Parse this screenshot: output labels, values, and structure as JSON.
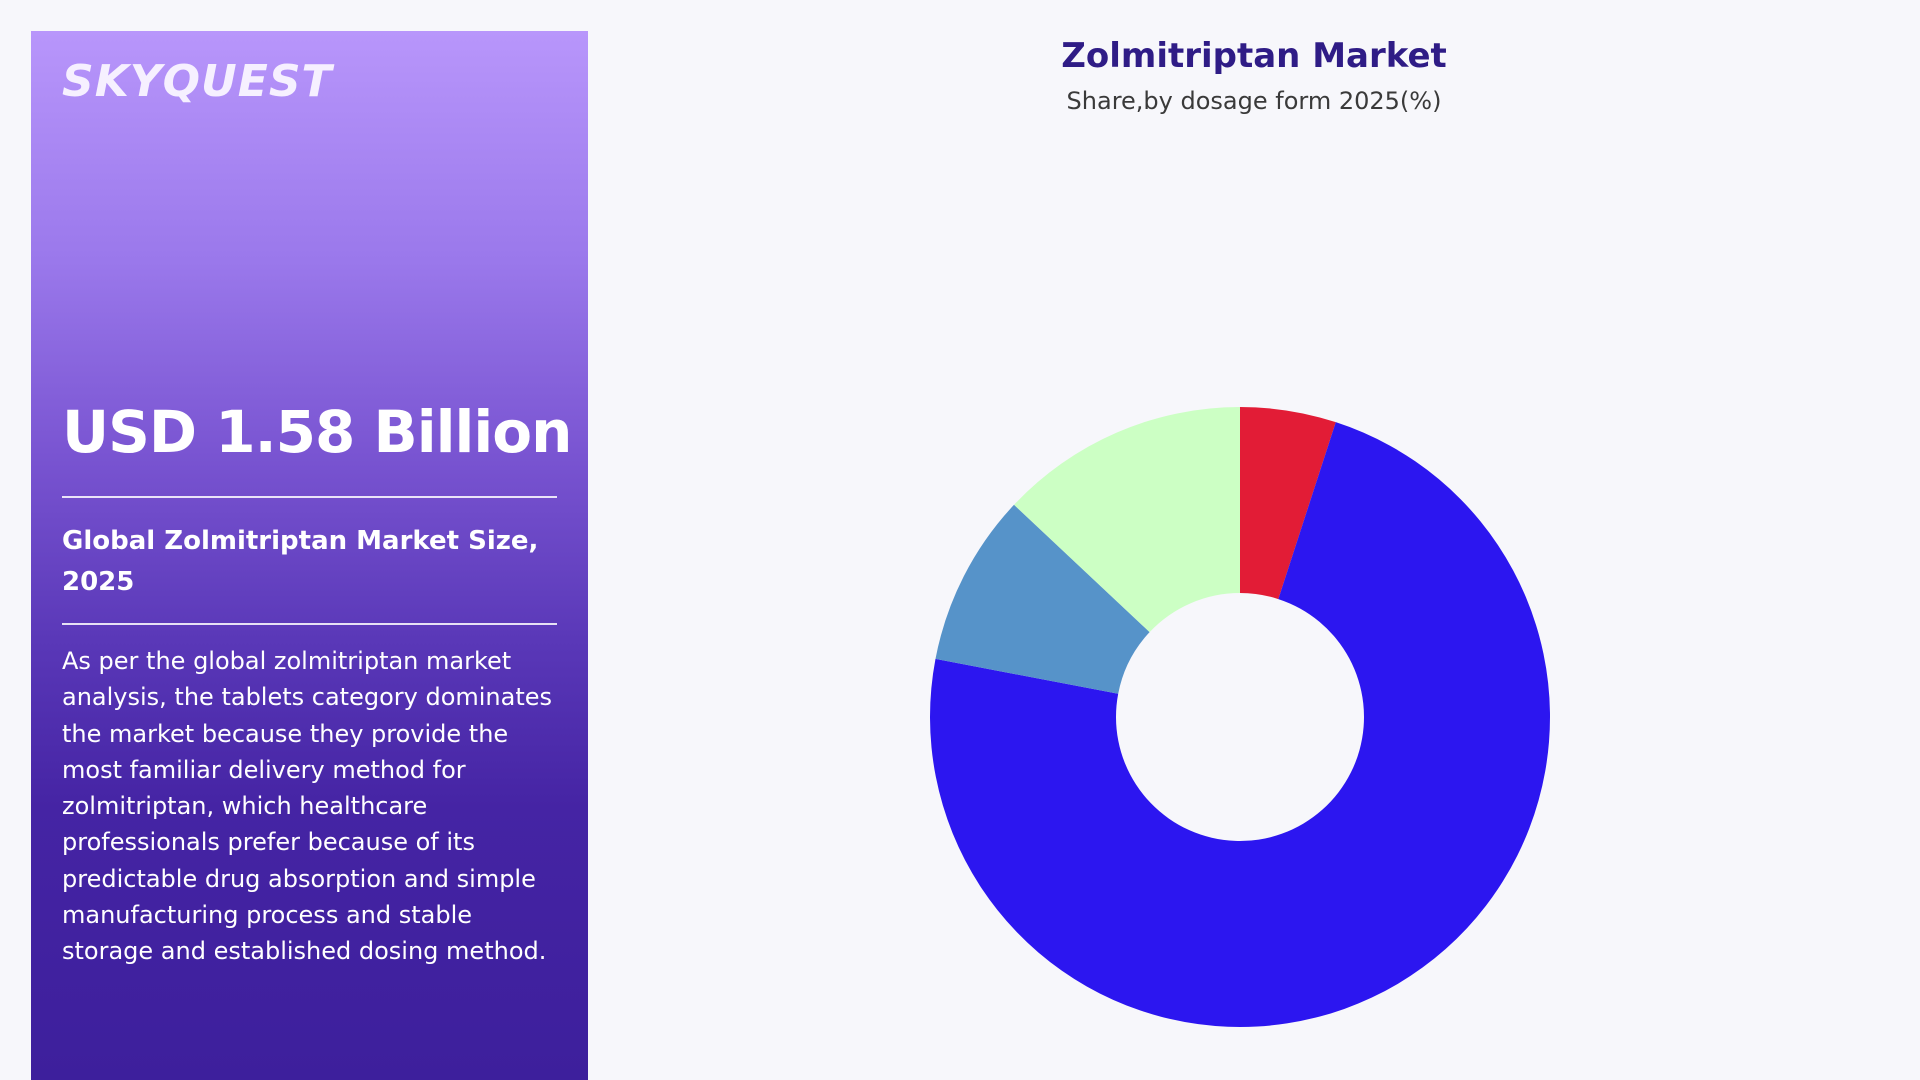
{
  "brand": {
    "logo_text": "SKYQUEST"
  },
  "panel": {
    "market_value": "USD 1.58 Billion",
    "size_heading": "Global Zolmitriptan Market Size, 2025",
    "description": "As per the global zolmitriptan market analysis, the tablets category dominates the market because they provide the most familiar delivery method for zolmitriptan, which healthcare professionals prefer because of its predictable drug absorption and simple manufacturing process and stable storage and established dosing method."
  },
  "chart_data": {
    "type": "pie",
    "title": "Zolmitriptan Market",
    "subtitle": "Share,by dosage form 2025(%)",
    "donut": true,
    "legend": "none",
    "slices": [
      {
        "value": 5,
        "color": "#e21c36"
      },
      {
        "value": 73,
        "color": "#2c16f0"
      },
      {
        "value": 9,
        "color": "#5693c9"
      },
      {
        "value": 13,
        "color": "#ccffc4"
      }
    ]
  }
}
